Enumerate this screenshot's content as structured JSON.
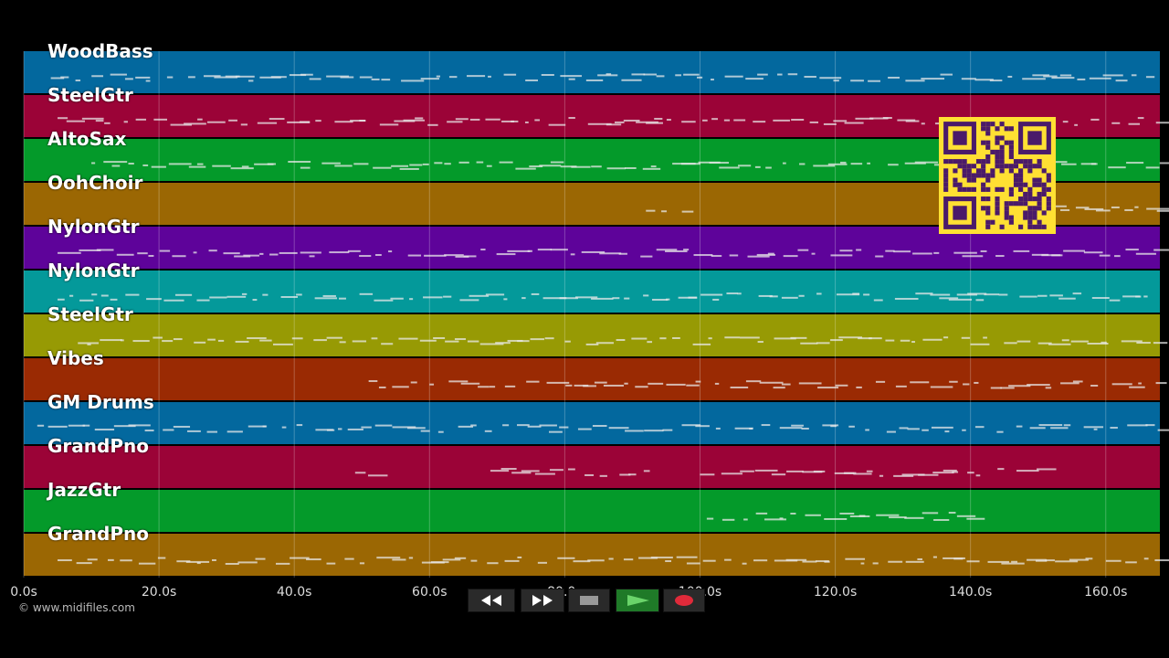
{
  "tracks": [
    {
      "name": "WoodBass",
      "color": "#03689e"
    },
    {
      "name": "SteelGtr",
      "color": "#9b0337"
    },
    {
      "name": "AltoSax",
      "color": "#049a2a"
    },
    {
      "name": "OohChoir",
      "color": "#9b6703"
    },
    {
      "name": "NylonGtr",
      "color": "#5e039a"
    },
    {
      "name": "NylonGtr",
      "color": "#04999a"
    },
    {
      "name": "SteelGtr",
      "color": "#979a04"
    },
    {
      "name": "Vibes",
      "color": "#9a2a03"
    },
    {
      "name": "GM Drums",
      "color": "#03689e"
    },
    {
      "name": "GrandPno",
      "color": "#9b0337"
    },
    {
      "name": "JazzGtr",
      "color": "#049a2a"
    },
    {
      "name": "GrandPno",
      "color": "#9b6703"
    }
  ],
  "time_axis": {
    "ticks": [
      "0.0s",
      "20.0s",
      "40.0s",
      "60.0s",
      "80.0s",
      "100.0s",
      "120.0s",
      "140.0s",
      "160.0s"
    ],
    "tick_values": [
      0,
      20,
      40,
      60,
      80,
      100,
      120,
      140,
      160
    ],
    "max_seconds": 168
  },
  "copyright": "© www.midifiles.com",
  "transport": {
    "rewind_icon": "rewind-icon",
    "forward_icon": "fast-forward-icon",
    "stop_icon": "stop-icon",
    "play_icon": "play-icon",
    "record_icon": "record-icon"
  },
  "qr_code": {
    "color": "#ffe033",
    "dark": "#4a1a6a"
  }
}
